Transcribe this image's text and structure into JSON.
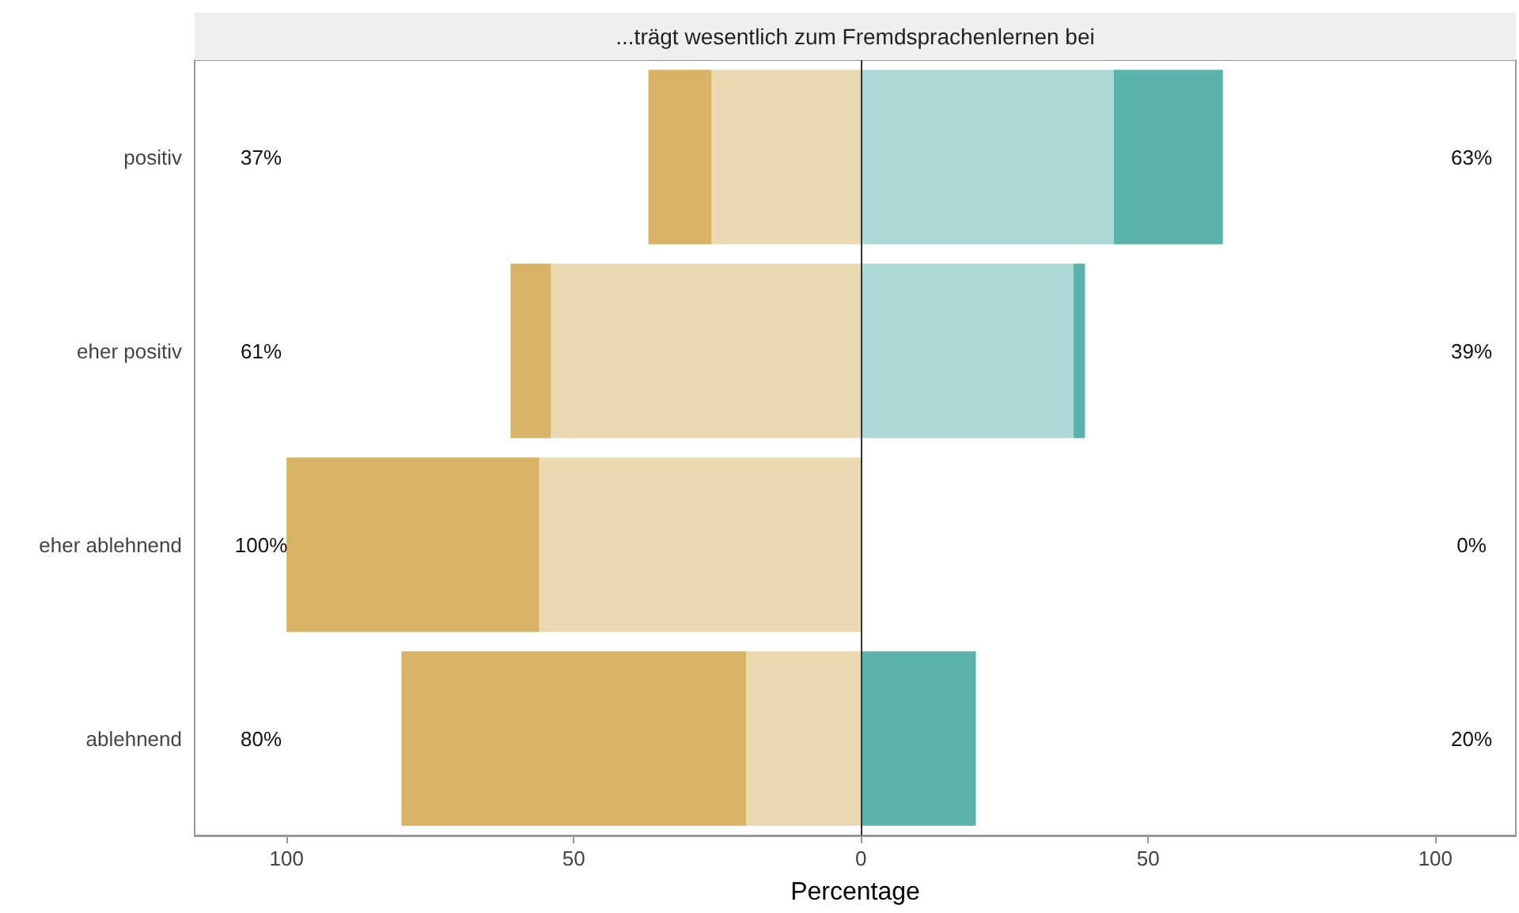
{
  "chart_data": {
    "type": "bar",
    "orientation": "horizontal",
    "stacked": true,
    "title": "...trägt wesentlich zum Fremdsprachenlernen bei",
    "xlabel": "Percentage",
    "categories": [
      "positiv",
      "eher positiv",
      "eher ablehnend",
      "ablehnend"
    ],
    "series": [
      {
        "color": "#ebd9b2",
        "values": [
          -26,
          -54,
          -56,
          -20
        ]
      },
      {
        "color": "#d8b365",
        "values": [
          -11,
          -7,
          -44,
          -60
        ]
      },
      {
        "color": "#acd9d5",
        "values": [
          44,
          37,
          0,
          0
        ]
      },
      {
        "color": "#5ab4ac",
        "values": [
          19,
          2,
          0,
          20
        ]
      }
    ],
    "xlim": [
      -116,
      114
    ],
    "xticks": [
      {
        "value": -100,
        "label": "100"
      },
      {
        "value": -50,
        "label": "50"
      },
      0,
      50,
      100
    ],
    "ref_lines": [
      {
        "axis": "x",
        "value": 0,
        "color": "#333333"
      }
    ],
    "annotations": [
      "37%",
      "61%",
      "100%",
      "80%",
      "63%",
      "39%",
      "0%",
      "20%"
    ],
    "grid": false
  }
}
